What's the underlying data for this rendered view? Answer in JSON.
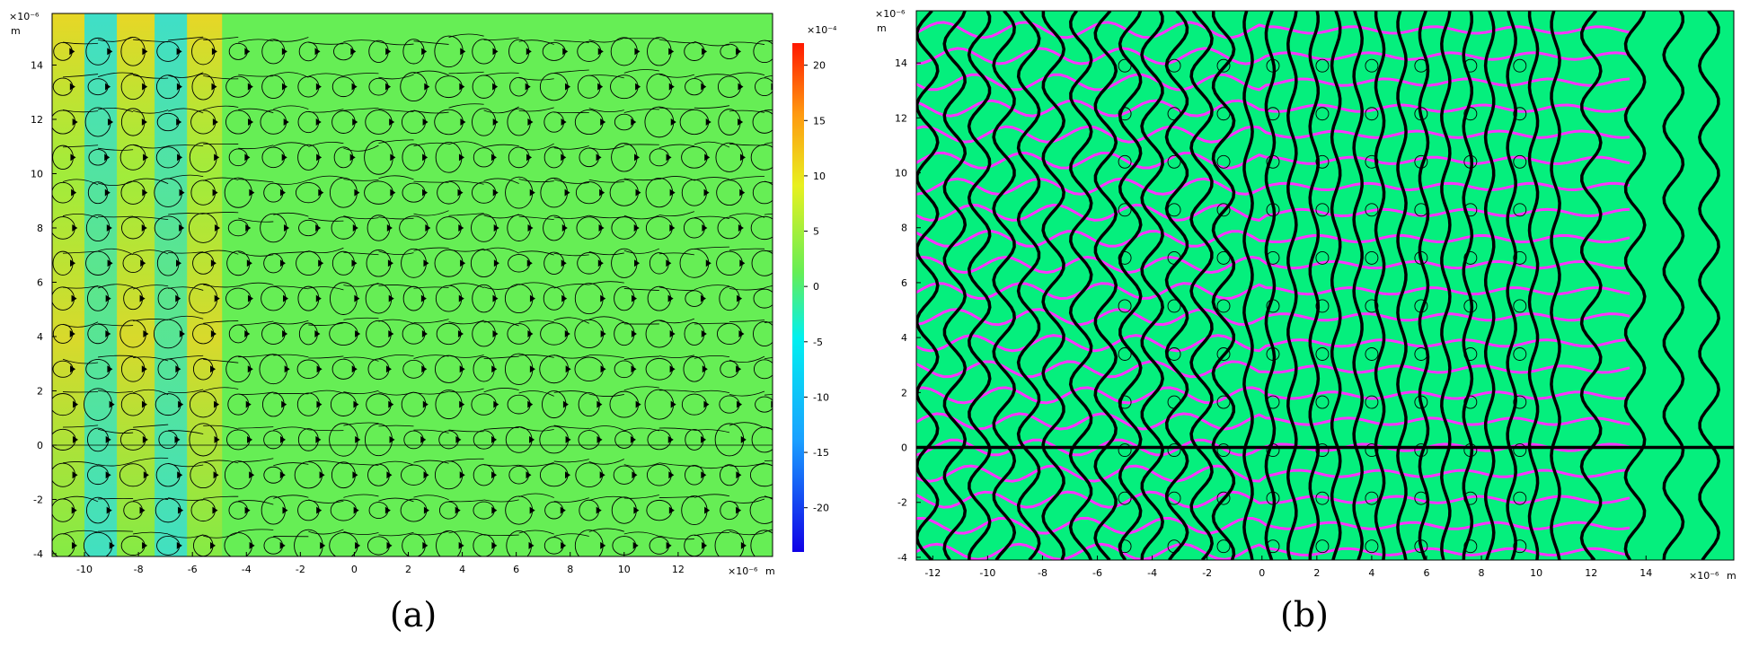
{
  "chart_data": [
    {
      "type": "heatmap",
      "panel_label": "(a)",
      "x_ticks": [
        -10,
        -8,
        -6,
        -4,
        -2,
        0,
        2,
        4,
        6,
        8,
        10,
        12
      ],
      "y_ticks": [
        -4,
        -2,
        0,
        2,
        4,
        6,
        8,
        10,
        12,
        14
      ],
      "xlim": [
        -11.2,
        15.5
      ],
      "ylim": [
        -4.1,
        15.9
      ],
      "x_scale_label": "×10⁻⁶",
      "x_unit": "m",
      "y_scale_label": "×10⁻⁶",
      "y_unit": "m",
      "colorbar": {
        "scale_label": "×10⁻⁴",
        "ticks": [
          -20,
          -15,
          -10,
          -5,
          0,
          5,
          10,
          15,
          20
        ],
        "range": [
          -24,
          22
        ],
        "colormap": "rainbow"
      },
      "overlay": "black streamlines with arrowheads",
      "background_color": "#66ee55",
      "band_colors": {
        "positive": "#ffd21e",
        "negative": "#38dcdc"
      }
    },
    {
      "type": "contour",
      "panel_label": "(b)",
      "x_ticks": [
        -12,
        -10,
        -8,
        -6,
        -4,
        -2,
        0,
        2,
        4,
        6,
        8,
        10,
        12,
        14
      ],
      "y_ticks": [
        -4,
        -2,
        0,
        2,
        4,
        6,
        8,
        10,
        12,
        14
      ],
      "xlim": [
        -12.6,
        17.2
      ],
      "ylim": [
        -4.1,
        15.9
      ],
      "x_scale_label": "×10⁻⁶",
      "x_unit": "m",
      "y_scale_label": "×10⁻⁶",
      "y_unit": "m",
      "background_color": "#05ef7d",
      "contour_colors": {
        "vertical": "#000000",
        "horizontal": "#ff33ff"
      },
      "horizontal_axis_line_y": 0
    }
  ]
}
